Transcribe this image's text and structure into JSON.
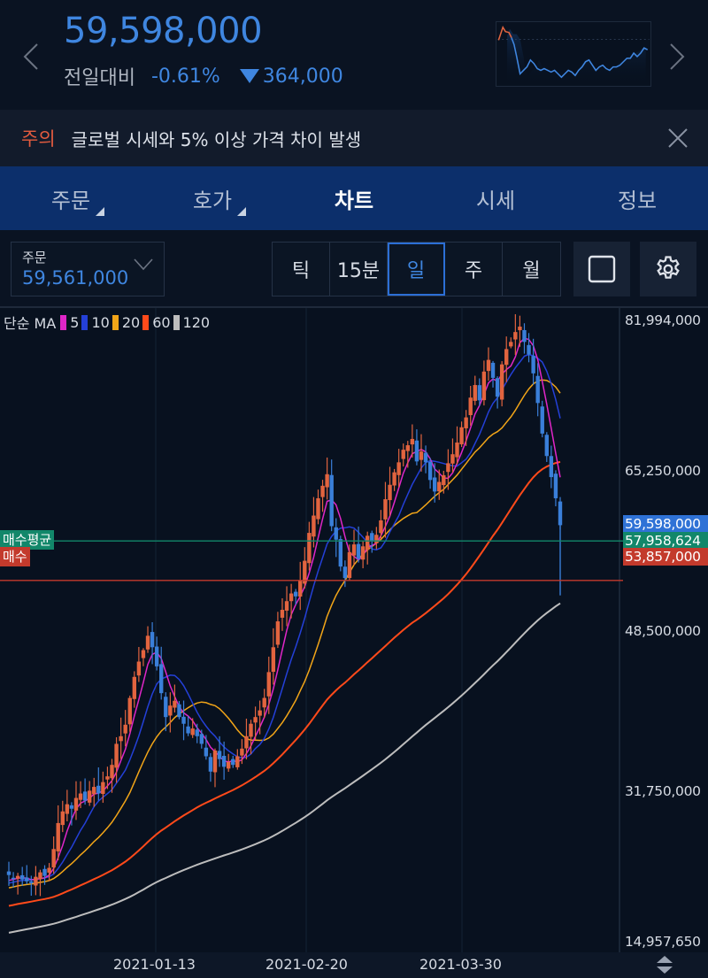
{
  "header": {
    "price": "59,598,000",
    "change_label": "전일대비",
    "change_pct": "-0.61%",
    "change_amount": "364,000",
    "change_direction": "down",
    "colors": {
      "price": "#3f86e0",
      "up": "#e25b3f",
      "down": "#3f86e0"
    }
  },
  "notice": {
    "tag": "주의",
    "text": "글로벌 시세와 5% 이상 가격 차이 발생"
  },
  "tabs": [
    {
      "label": "주문",
      "active": false,
      "has_corner": true
    },
    {
      "label": "호가",
      "active": false,
      "has_corner": true
    },
    {
      "label": "차트",
      "active": true,
      "has_corner": false
    },
    {
      "label": "시세",
      "active": false,
      "has_corner": false
    },
    {
      "label": "정보",
      "active": false,
      "has_corner": false
    }
  ],
  "toolbar": {
    "order_select": {
      "label": "주문",
      "value": "59,561,000"
    },
    "periods": [
      {
        "label": "틱",
        "active": false
      },
      {
        "label": "15분",
        "active": false
      },
      {
        "label": "일",
        "active": true
      },
      {
        "label": "주",
        "active": false
      },
      {
        "label": "월",
        "active": false
      }
    ],
    "icons": [
      "fullscreen-square-icon",
      "settings-gear-icon"
    ]
  },
  "chart": {
    "legend": {
      "title": "단순 MA",
      "items": [
        {
          "label": "5",
          "color": "#e026c8"
        },
        {
          "label": "10",
          "color": "#2440d8"
        },
        {
          "label": "20",
          "color": "#f2a518"
        },
        {
          "label": "60",
          "color": "#ff4a1a"
        },
        {
          "label": "120",
          "color": "#bdbdbd"
        }
      ]
    },
    "y_axis_labels": [
      "81,994,000",
      "65,250,000",
      "48,500,000",
      "31,750,000",
      "14,957,650"
    ],
    "current_price_tag": {
      "value": "59,598,000",
      "color": "#2f72d6"
    },
    "avg_buy": {
      "label": "매수평균",
      "value": "57,958,624",
      "color": "#12876a"
    },
    "buy": {
      "label": "매수",
      "value": "53,857,000",
      "color": "#c33a2c"
    },
    "x_axis_labels": [
      "2021-01-13",
      "2021-02-20",
      "2021-03-30"
    ]
  },
  "chart_data": {
    "type": "candlestick",
    "title": "",
    "xlabel": "",
    "ylabel": "",
    "ylim": [
      14957650,
      81994000
    ],
    "x_ticks": [
      "2021-01-13",
      "2021-02-20",
      "2021-03-30"
    ],
    "y_ticks": [
      81994000,
      65250000,
      48500000,
      31750000,
      14957650
    ],
    "close_series": [
      22.5,
      22.1,
      22.4,
      22.0,
      21.8,
      21.6,
      22.3,
      22.8,
      22.4,
      23.3,
      25.4,
      28.3,
      29.6,
      30.4,
      29.9,
      31.1,
      31.6,
      30.8,
      31.9,
      32.3,
      31.6,
      32.8,
      33.4,
      34.6,
      36.8,
      37.6,
      38.8,
      41.6,
      43.8,
      45.4,
      46.6,
      48.1,
      46.9,
      44.9,
      42.1,
      39.6,
      40.8,
      41.3,
      39.6,
      38.9,
      37.9,
      38.4,
      37.6,
      36.8,
      35.5,
      33.9,
      36.1,
      35.2,
      34.4,
      34.9,
      34.6,
      35.5,
      36.3,
      37.6,
      38.9,
      39.6,
      40.3,
      41.6,
      44.3,
      46.9,
      49.6,
      50.8,
      51.7,
      52.5,
      52.2,
      53.8,
      55.9,
      58.8,
      60.6,
      62.4,
      63.7,
      64.9,
      59.5,
      58.1,
      55.3,
      54.1,
      56.8,
      57.6,
      56.1,
      57.4,
      58.5,
      57.9,
      58.6,
      60.1,
      62.3,
      63.8,
      65.1,
      66.2,
      67.6,
      68.1,
      68.8,
      66.3,
      67.4,
      66.2,
      64.3,
      63.1,
      64.1,
      64.8,
      66.1,
      67.1,
      68.4,
      70.1,
      71.2,
      73.4,
      74.8,
      73.1,
      76.3,
      77.6,
      75.6,
      73.5,
      77.1,
      78.8,
      79.6,
      80.7,
      81.3,
      79.6,
      78.2,
      76.1,
      72.8,
      69.4,
      66.9,
      64.6,
      62.4,
      59.6
    ],
    "series": [
      {
        "name": "MA5",
        "color": "#e026c8"
      },
      {
        "name": "MA10",
        "color": "#2440d8"
      },
      {
        "name": "MA20",
        "color": "#f2a518"
      },
      {
        "name": "MA60",
        "color": "#ff4a1a"
      },
      {
        "name": "MA120",
        "color": "#bdbdbd"
      }
    ],
    "horizontal_lines": [
      {
        "name": "매수평균",
        "value": 57958624,
        "color": "#12876a"
      },
      {
        "name": "매수",
        "value": 53857000,
        "color": "#c33a2c"
      }
    ],
    "last_price": 59598000,
    "units": "millions KRW in close_series",
    "grid": true,
    "legend_position": "top-left"
  }
}
